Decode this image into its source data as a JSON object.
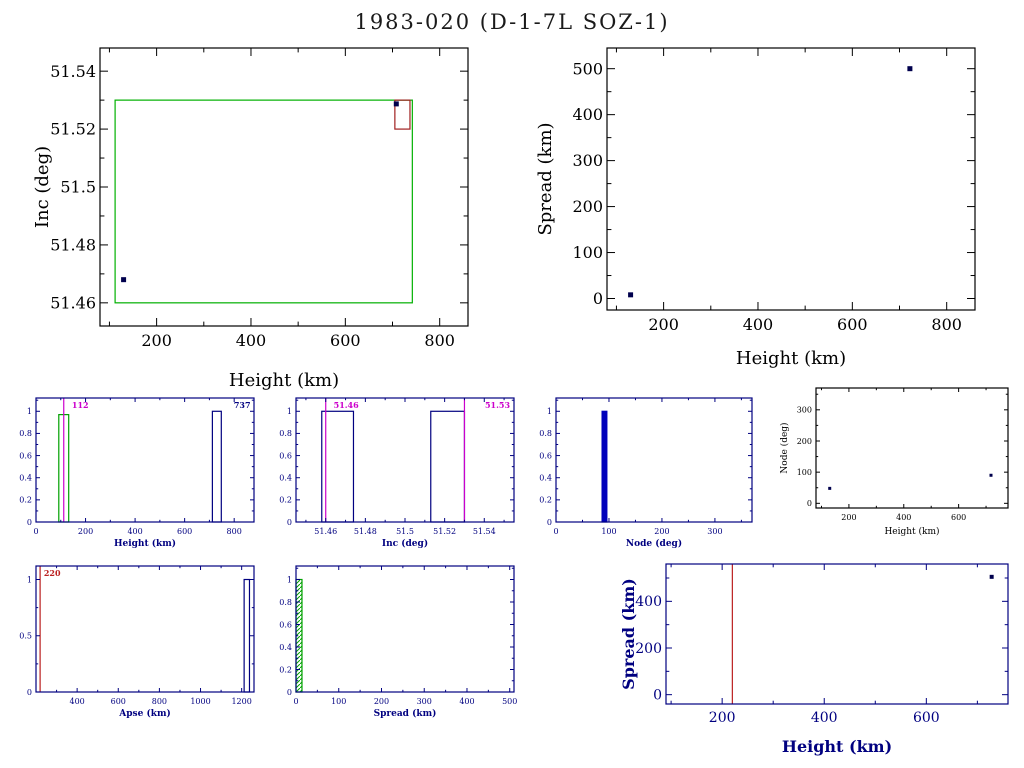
{
  "title": "1983-020 (D-1-7L SOZ-1)",
  "colors": {
    "axis_black": "#000000",
    "navy": "#000080",
    "bright_blue": "#0000bb",
    "magenta": "#cc00cc",
    "green": "#00a000",
    "red": "#bb2020",
    "point": "#00004d"
  },
  "chart_data": [
    {
      "id": "inc_vs_height",
      "type": "scatter",
      "xlabel": "Height (km)",
      "ylabel": "Inc (deg)",
      "xlim": [
        80,
        860
      ],
      "ylim": [
        51.452,
        51.548
      ],
      "xticks": [
        200,
        400,
        600,
        800
      ],
      "xtick_labels": [
        "200",
        "400",
        "600",
        "800"
      ],
      "yticks": [
        51.46,
        51.48,
        51.5,
        51.52,
        51.54
      ],
      "ytick_labels": [
        "51.46",
        "51.48",
        "51.5",
        "51.52",
        "51.54"
      ],
      "axis_color": "#000000",
      "label_color": "#000000",
      "point_color": "#00004d",
      "points": [
        {
          "x": 130,
          "y": 51.468
        },
        {
          "x": 708,
          "y": 51.5287
        }
      ],
      "rects": [
        {
          "x1": 112,
          "x2": 742,
          "y1": 51.46,
          "y2": 51.53,
          "color": "#00b000"
        },
        {
          "x1": 705,
          "x2": 737,
          "y1": 51.52,
          "y2": 51.53,
          "color": "#a02020"
        }
      ]
    },
    {
      "id": "spread_vs_height",
      "type": "scatter",
      "xlabel": "Height (km)",
      "ylabel": "Spread (km)",
      "xlim": [
        80,
        860
      ],
      "ylim": [
        -25,
        545
      ],
      "xticks": [
        200,
        400,
        600,
        800
      ],
      "xtick_labels": [
        "200",
        "400",
        "600",
        "800"
      ],
      "yticks": [
        0,
        100,
        200,
        300,
        400,
        500
      ],
      "ytick_labels": [
        "0",
        "100",
        "200",
        "300",
        "400",
        "500"
      ],
      "axis_color": "#000000",
      "label_color": "#000000",
      "point_color": "#00004d",
      "points": [
        {
          "x": 130,
          "y": 8
        },
        {
          "x": 722,
          "y": 500
        }
      ]
    },
    {
      "id": "hist_height",
      "type": "histogram",
      "xlabel": "Height (km)",
      "xlim": [
        0,
        880
      ],
      "ylim": [
        0,
        1.12
      ],
      "xticks": [
        0,
        200,
        400,
        600,
        800
      ],
      "xtick_labels": [
        "0",
        "200",
        "400",
        "600",
        "800"
      ],
      "yticks": [
        0,
        0.2,
        0.4,
        0.6,
        0.8,
        1
      ],
      "ytick_labels": [
        "0",
        "0.2",
        "0.4",
        "0.6",
        "0.8",
        "1"
      ],
      "axis_color": "#000080",
      "label_color": "#000080",
      "bars": [
        {
          "x1": 92,
          "x2": 132,
          "h": 0.97,
          "color": "#00a000",
          "fill": "none"
        },
        {
          "x1": 712,
          "x2": 748,
          "h": 1.0,
          "color": "#000080",
          "fill": "none"
        }
      ],
      "vlines": [
        {
          "x": 112,
          "color": "#cc00cc"
        }
      ],
      "annotations": [
        {
          "text": "112",
          "color": "#cc00cc",
          "x": 145,
          "anchor": "start"
        },
        {
          "text": "737",
          "color": "#000080",
          "x": 866,
          "anchor": "end"
        }
      ]
    },
    {
      "id": "hist_inc",
      "type": "histogram",
      "xlabel": "Inc (deg)",
      "xlim": [
        51.445,
        51.555
      ],
      "ylim": [
        0,
        1.12
      ],
      "xticks": [
        51.46,
        51.48,
        51.5,
        51.52,
        51.54
      ],
      "xtick_labels": [
        "51.46",
        "51.48",
        "51.5",
        "51.52",
        "51.54"
      ],
      "yticks": [
        0,
        0.2,
        0.4,
        0.6,
        0.8,
        1
      ],
      "ytick_labels": [
        "0",
        "0.2",
        "0.4",
        "0.6",
        "0.8",
        "1"
      ],
      "axis_color": "#000080",
      "label_color": "#000080",
      "bars": [
        {
          "x1": 51.458,
          "x2": 51.474,
          "h": 1.0,
          "color": "#000080",
          "fill": "none"
        },
        {
          "x1": 51.513,
          "x2": 51.53,
          "h": 1.0,
          "color": "#000080",
          "fill": "none"
        }
      ],
      "vlines": [
        {
          "x": 51.46,
          "color": "#cc00cc"
        },
        {
          "x": 51.53,
          "color": "#cc00cc"
        }
      ],
      "annotations": [
        {
          "text": "51.46",
          "color": "#cc00cc",
          "x": 51.464,
          "anchor": "start"
        },
        {
          "text": "51.53",
          "color": "#cc00cc",
          "x": 51.553,
          "anchor": "end"
        }
      ]
    },
    {
      "id": "hist_node",
      "type": "histogram",
      "xlabel": "Node (deg)",
      "xlim": [
        0,
        370
      ],
      "ylim": [
        0,
        1.12
      ],
      "xticks": [
        0,
        100,
        200,
        300
      ],
      "xtick_labels": [
        "0",
        "100",
        "200",
        "300"
      ],
      "yticks": [
        0,
        0.2,
        0.4,
        0.6,
        0.8,
        1
      ],
      "ytick_labels": [
        "0",
        "0.2",
        "0.4",
        "0.6",
        "0.8",
        "1"
      ],
      "axis_color": "#000080",
      "label_color": "#000080",
      "bars": [
        {
          "x1": 87,
          "x2": 96,
          "h": 1.0,
          "color": "#0000bb",
          "fill": "solid"
        }
      ]
    },
    {
      "id": "node_vs_height",
      "type": "scatter",
      "xlabel": "Height (km)",
      "ylabel": "Node (deg)",
      "xlim": [
        80,
        780
      ],
      "ylim": [
        -15,
        370
      ],
      "xticks": [
        200,
        400,
        600
      ],
      "xtick_labels": [
        "200",
        "400",
        "600"
      ],
      "yticks": [
        0,
        100,
        200,
        300
      ],
      "ytick_labels": [
        "0",
        "100",
        "200",
        "300"
      ],
      "axis_color": "#000000",
      "label_color": "#000000",
      "point_color": "#00004d",
      "points": [
        {
          "x": 130,
          "y": 48
        },
        {
          "x": 718,
          "y": 90
        }
      ]
    },
    {
      "id": "hist_apse",
      "type": "histogram",
      "xlabel": "Apse (km)",
      "xlim": [
        200,
        1260
      ],
      "ylim": [
        0,
        1.12
      ],
      "xticks": [
        400,
        600,
        800,
        1000,
        1200
      ],
      "xtick_labels": [
        "400",
        "600",
        "800",
        "1000",
        "1200"
      ],
      "yticks": [
        0,
        0.5,
        1
      ],
      "ytick_labels": [
        "0",
        "0.5",
        "1"
      ],
      "axis_color": "#000080",
      "label_color": "#000080",
      "bars": [
        {
          "x1": 1212,
          "x2": 1238,
          "h": 1.0,
          "color": "#000080",
          "fill": "none"
        }
      ],
      "vlines": [
        {
          "x": 220,
          "color": "#bb2020"
        }
      ],
      "annotations": [
        {
          "text": "220",
          "color": "#bb2020",
          "x": 238,
          "anchor": "start"
        }
      ]
    },
    {
      "id": "hist_spread",
      "type": "histogram",
      "xlabel": "Spread (km)",
      "xlim": [
        0,
        510
      ],
      "ylim": [
        0,
        1.12
      ],
      "xticks": [
        0,
        100,
        200,
        300,
        400,
        500
      ],
      "xtick_labels": [
        "0",
        "100",
        "200",
        "300",
        "400",
        "500"
      ],
      "yticks": [
        0,
        0.2,
        0.4,
        0.6,
        0.8,
        1
      ],
      "ytick_labels": [
        "0",
        "0.2",
        "0.4",
        "0.6",
        "0.8",
        "1"
      ],
      "axis_color": "#000080",
      "label_color": "#000080",
      "bars": [
        {
          "x1": 0,
          "x2": 14,
          "h": 1.0,
          "color": "#00a000",
          "fill": "hatch"
        }
      ]
    },
    {
      "id": "spread_vs_height_wide",
      "type": "scatter",
      "xlabel": "Height (km)",
      "ylabel": "Spread (km)",
      "xlim": [
        90,
        760
      ],
      "ylim": [
        -40,
        560
      ],
      "xticks": [
        200,
        400,
        600
      ],
      "xtick_labels": [
        "200",
        "400",
        "600"
      ],
      "yticks": [
        0,
        200,
        400
      ],
      "ytick_labels": [
        "0",
        "200",
        "400"
      ],
      "axis_color": "#000080",
      "label_color": "#000080",
      "point_color": "#00004d",
      "vlines": [
        {
          "x": 220,
          "color": "#bb2020"
        }
      ],
      "points": [
        {
          "x": 728,
          "y": 505
        }
      ]
    }
  ]
}
